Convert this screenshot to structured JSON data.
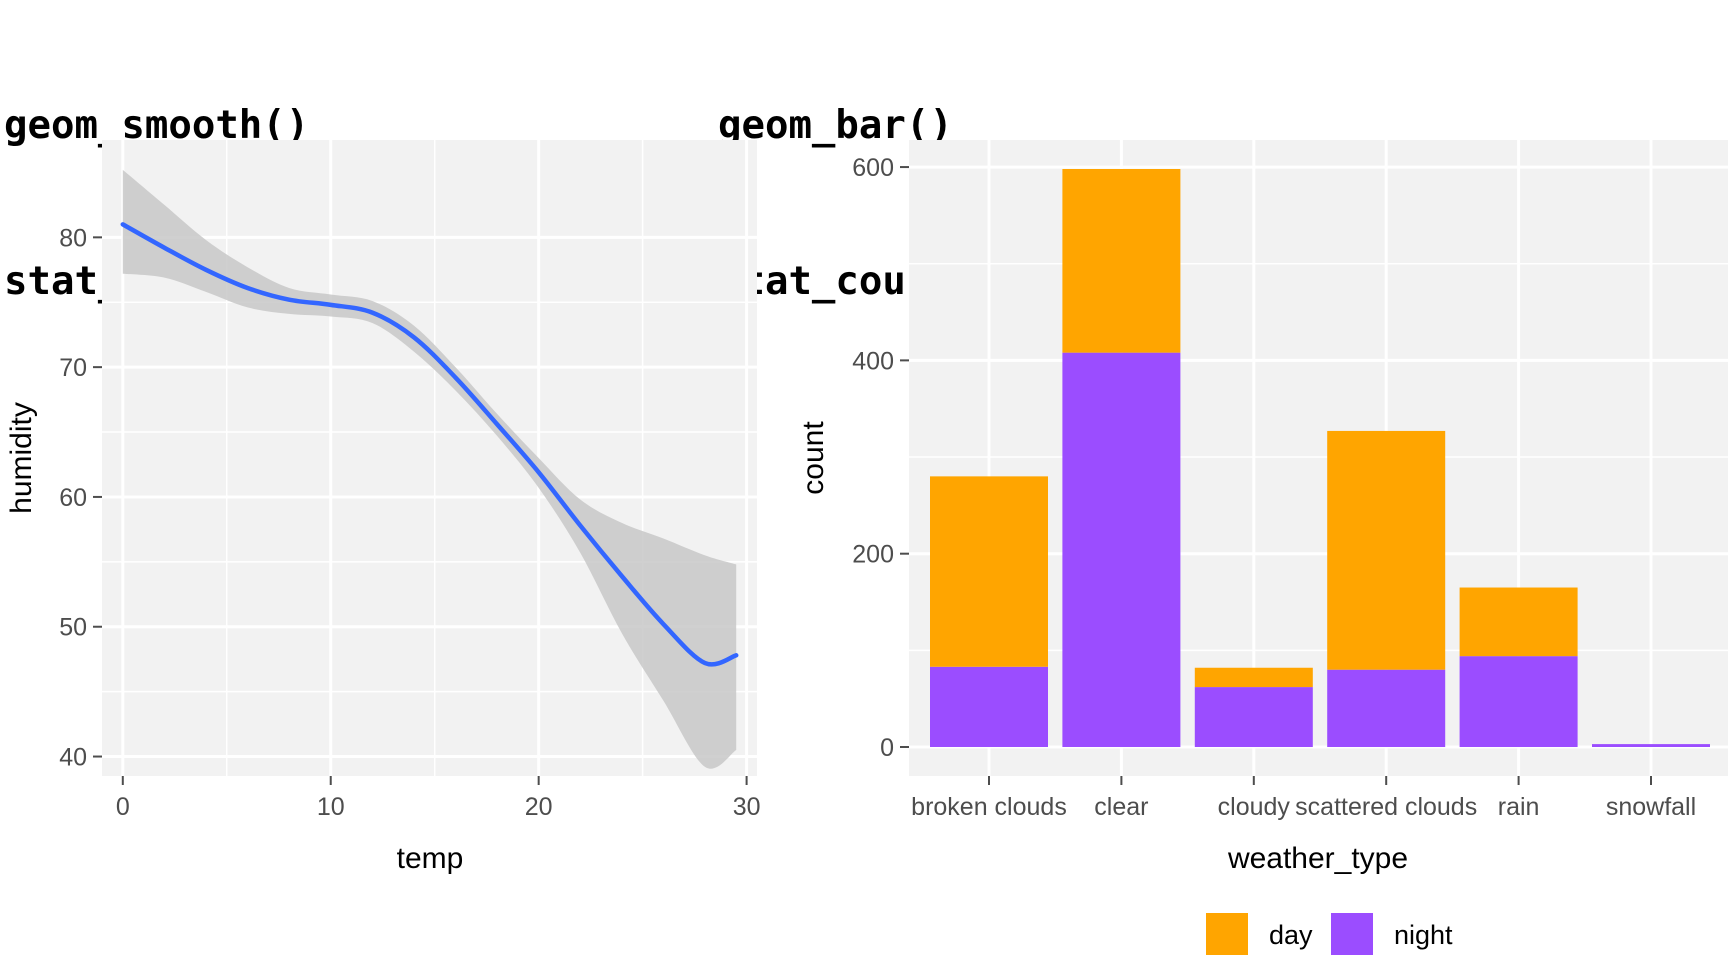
{
  "titles": {
    "left_line1": "geom_smooth()",
    "left_line2": "stat_smooth()",
    "right_line1": "geom_bar()",
    "right_line2": "stat_count()"
  },
  "chart_data": [
    {
      "type": "line",
      "xlabel": "temp",
      "ylabel": "humidity",
      "xlim": [
        -1,
        30.5
      ],
      "ylim": [
        38.5,
        87.5
      ],
      "x_ticks": [
        0,
        10,
        20,
        30
      ],
      "y_ticks": [
        40,
        50,
        60,
        70,
        80
      ],
      "grid": true,
      "series": [
        {
          "x": [
            0,
            2,
            4,
            6,
            8,
            10,
            12,
            14,
            16,
            18,
            20,
            22,
            24,
            26,
            28,
            29.5
          ],
          "y": [
            81,
            79.2,
            77.5,
            76.1,
            75.2,
            74.8,
            74.2,
            72.3,
            69.2,
            65.6,
            61.9,
            57.8,
            53.9,
            50.2,
            47.2,
            47.8
          ],
          "ci_upper": [
            85.2,
            82.5,
            79.8,
            77.7,
            76.1,
            75.6,
            75.1,
            73.2,
            70.0,
            66.4,
            63.0,
            59.8,
            58.0,
            56.8,
            55.5,
            54.8
          ],
          "ci_lower": [
            77.2,
            76.9,
            75.8,
            74.6,
            74.1,
            73.9,
            73.4,
            71.2,
            68.2,
            64.7,
            60.7,
            55.7,
            49.5,
            44.3,
            39.2,
            40.5
          ]
        }
      ],
      "colors": {
        "line": "#3366ff",
        "ribbon": "#c8c8c8"
      }
    },
    {
      "type": "bar",
      "stacked": true,
      "xlabel": "weather_type",
      "ylabel": "count",
      "categories": [
        "broken clouds",
        "clear",
        "cloudy",
        "scattered clouds",
        "rain",
        "snowfall"
      ],
      "ylim": [
        -30,
        628
      ],
      "y_ticks": [
        0,
        200,
        400,
        600
      ],
      "grid": true,
      "legend_position": "bottom",
      "series": [
        {
          "name": "night",
          "color": "#9b4dff",
          "values": [
            83,
            408,
            62,
            80,
            94,
            3
          ]
        },
        {
          "name": "day",
          "color": "#ffa500",
          "values": [
            197,
            190,
            20,
            247,
            71,
            0
          ]
        }
      ],
      "legend": [
        {
          "label": "day",
          "color": "#ffa500"
        },
        {
          "label": "night",
          "color": "#9b4dff"
        }
      ]
    }
  ]
}
